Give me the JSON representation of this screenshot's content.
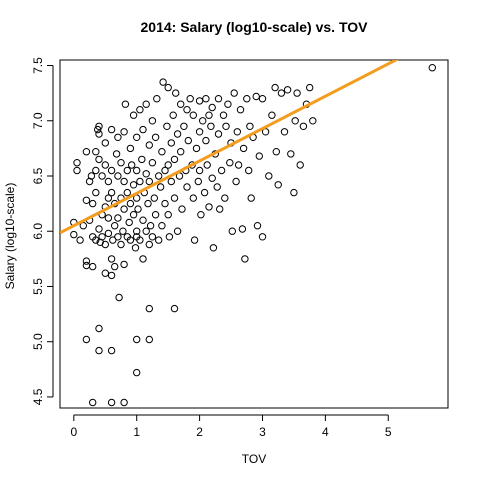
{
  "chart_data": {
    "type": "scatter",
    "title": "2014: Salary (log10-scale) vs. TOV",
    "xlabel": "TOV",
    "ylabel": "Salary (log10-scale)",
    "xlim": [
      -0.22,
      5.95
    ],
    "ylim": [
      4.4,
      7.55
    ],
    "xticks": [
      0,
      1,
      2,
      3,
      4,
      5
    ],
    "yticks": [
      4.5,
      5.0,
      5.5,
      6.0,
      6.5,
      7.0,
      7.5
    ],
    "colors": {
      "points": "#000000",
      "fit_line": "#f39c1e"
    },
    "fit_line": {
      "intercept": 6.05,
      "slope": 0.293
    },
    "series": [
      {
        "type": "scatter",
        "points": [
          [
            0.0,
            6.08
          ],
          [
            0.0,
            5.97
          ],
          [
            0.05,
            6.55
          ],
          [
            0.05,
            6.62
          ],
          [
            0.1,
            5.92
          ],
          [
            0.15,
            6.05
          ],
          [
            0.2,
            5.73
          ],
          [
            0.2,
            5.69
          ],
          [
            0.2,
            6.28
          ],
          [
            0.2,
            6.72
          ],
          [
            0.25,
            6.1
          ],
          [
            0.25,
            6.45
          ],
          [
            0.28,
            6.5
          ],
          [
            0.3,
            5.95
          ],
          [
            0.3,
            6.25
          ],
          [
            0.3,
            5.68
          ],
          [
            0.35,
            6.35
          ],
          [
            0.35,
            6.55
          ],
          [
            0.35,
            5.92
          ],
          [
            0.35,
            6.72
          ],
          [
            0.38,
            6.92
          ],
          [
            0.4,
            6.95
          ],
          [
            0.4,
            6.88
          ],
          [
            0.4,
            6.65
          ],
          [
            0.4,
            6.02
          ],
          [
            0.42,
            5.9
          ],
          [
            0.45,
            6.15
          ],
          [
            0.45,
            6.5
          ],
          [
            0.45,
            5.95
          ],
          [
            0.5,
            6.22
          ],
          [
            0.5,
            6.8
          ],
          [
            0.5,
            6.6
          ],
          [
            0.5,
            5.62
          ],
          [
            0.5,
            5.88
          ],
          [
            0.55,
            6.3
          ],
          [
            0.55,
            6.45
          ],
          [
            0.55,
            6.12
          ],
          [
            0.55,
            5.98
          ],
          [
            0.6,
            5.75
          ],
          [
            0.6,
            5.6
          ],
          [
            0.6,
            6.92
          ],
          [
            0.6,
            6.35
          ],
          [
            0.6,
            6.55
          ],
          [
            0.62,
            5.92
          ],
          [
            0.65,
            6.05
          ],
          [
            0.65,
            5.68
          ],
          [
            0.65,
            6.25
          ],
          [
            0.68,
            6.7
          ],
          [
            0.7,
            6.5
          ],
          [
            0.7,
            6.85
          ],
          [
            0.7,
            6.12
          ],
          [
            0.7,
            5.95
          ],
          [
            0.72,
            5.4
          ],
          [
            0.75,
            6.3
          ],
          [
            0.75,
            6.62
          ],
          [
            0.75,
            5.88
          ],
          [
            0.78,
            6.0
          ],
          [
            0.8,
            6.45
          ],
          [
            0.8,
            6.9
          ],
          [
            0.8,
            5.7
          ],
          [
            0.8,
            6.2
          ],
          [
            0.82,
            7.15
          ],
          [
            0.85,
            6.55
          ],
          [
            0.85,
            6.35
          ],
          [
            0.85,
            5.95
          ],
          [
            0.88,
            6.08
          ],
          [
            0.9,
            6.75
          ],
          [
            0.9,
            6.25
          ],
          [
            0.9,
            5.92
          ],
          [
            0.92,
            6.6
          ],
          [
            0.95,
            6.42
          ],
          [
            0.95,
            7.05
          ],
          [
            0.95,
            6.15
          ],
          [
            0.98,
            5.85
          ],
          [
            1.0,
            6.55
          ],
          [
            1.0,
            6.3
          ],
          [
            1.0,
            6.0
          ],
          [
            1.0,
            5.95
          ],
          [
            1.0,
            6.85
          ],
          [
            1.02,
            6.2
          ],
          [
            1.05,
            7.1
          ],
          [
            1.05,
            6.45
          ],
          [
            1.05,
            5.92
          ],
          [
            1.08,
            6.65
          ],
          [
            1.1,
            6.1
          ],
          [
            1.1,
            6.92
          ],
          [
            1.1,
            5.75
          ],
          [
            1.12,
            6.35
          ],
          [
            1.15,
            6.52
          ],
          [
            1.15,
            6.0
          ],
          [
            1.15,
            7.15
          ],
          [
            1.18,
            6.25
          ],
          [
            1.2,
            5.88
          ],
          [
            1.2,
            6.78
          ],
          [
            1.2,
            6.45
          ],
          [
            1.22,
            6.05
          ],
          [
            1.25,
            6.62
          ],
          [
            1.25,
            7.0
          ],
          [
            1.25,
            5.95
          ],
          [
            1.28,
            6.3
          ],
          [
            1.3,
            6.15
          ],
          [
            1.3,
            6.85
          ],
          [
            1.32,
            7.2
          ],
          [
            1.35,
            6.5
          ],
          [
            1.35,
            5.92
          ],
          [
            1.38,
            6.4
          ],
          [
            1.4,
            6.72
          ],
          [
            1.4,
            6.05
          ],
          [
            1.42,
            7.35
          ],
          [
            1.45,
            6.55
          ],
          [
            1.45,
            6.25
          ],
          [
            1.48,
            6.95
          ],
          [
            1.5,
            6.6
          ],
          [
            1.5,
            6.15
          ],
          [
            1.5,
            7.3
          ],
          [
            1.52,
            5.95
          ],
          [
            1.55,
            6.8
          ],
          [
            1.55,
            6.45
          ],
          [
            1.58,
            7.05
          ],
          [
            1.6,
            6.3
          ],
          [
            1.6,
            6.65
          ],
          [
            1.62,
            7.25
          ],
          [
            1.65,
            6.0
          ],
          [
            1.65,
            6.88
          ],
          [
            1.68,
            6.5
          ],
          [
            1.7,
            7.15
          ],
          [
            1.7,
            6.72
          ],
          [
            1.72,
            6.2
          ],
          [
            1.75,
            6.95
          ],
          [
            1.78,
            6.55
          ],
          [
            1.8,
            7.1
          ],
          [
            1.8,
            6.4
          ],
          [
            1.82,
            6.82
          ],
          [
            1.85,
            7.2
          ],
          [
            1.88,
            6.6
          ],
          [
            1.9,
            6.3
          ],
          [
            1.9,
            7.05
          ],
          [
            1.92,
            5.92
          ],
          [
            1.95,
            6.75
          ],
          [
            1.98,
            6.45
          ],
          [
            2.0,
            7.18
          ],
          [
            2.0,
            6.9
          ],
          [
            2.0,
            6.55
          ],
          [
            2.02,
            6.15
          ],
          [
            2.05,
            7.0
          ],
          [
            2.08,
            6.35
          ],
          [
            2.1,
            6.82
          ],
          [
            2.1,
            7.2
          ],
          [
            2.12,
            6.6
          ],
          [
            2.15,
            7.05
          ],
          [
            2.15,
            6.22
          ],
          [
            2.18,
            6.95
          ],
          [
            2.2,
            6.48
          ],
          [
            2.2,
            7.12
          ],
          [
            2.22,
            5.85
          ],
          [
            2.25,
            6.7
          ],
          [
            2.28,
            6.4
          ],
          [
            2.3,
            7.2
          ],
          [
            2.3,
            6.88
          ],
          [
            2.32,
            6.2
          ],
          [
            2.35,
            6.55
          ],
          [
            2.38,
            7.05
          ],
          [
            2.4,
            6.3
          ],
          [
            2.42,
            6.95
          ],
          [
            2.45,
            7.15
          ],
          [
            2.48,
            6.62
          ],
          [
            2.5,
            6.8
          ],
          [
            2.52,
            6.0
          ],
          [
            2.55,
            7.25
          ],
          [
            2.58,
            6.45
          ],
          [
            2.6,
            6.9
          ],
          [
            2.62,
            6.6
          ],
          [
            2.65,
            7.1
          ],
          [
            2.68,
            6.02
          ],
          [
            2.7,
            6.75
          ],
          [
            2.72,
            5.75
          ],
          [
            2.75,
            7.2
          ],
          [
            2.78,
            6.55
          ],
          [
            2.8,
            6.95
          ],
          [
            2.82,
            6.3
          ],
          [
            2.85,
            6.85
          ],
          [
            2.9,
            7.22
          ],
          [
            2.92,
            6.05
          ],
          [
            2.95,
            6.68
          ],
          [
            3.0,
            7.2
          ],
          [
            3.0,
            5.95
          ],
          [
            3.05,
            6.9
          ],
          [
            3.1,
            6.5
          ],
          [
            3.15,
            7.05
          ],
          [
            3.2,
            7.3
          ],
          [
            3.22,
            6.72
          ],
          [
            3.25,
            6.42
          ],
          [
            3.3,
            7.25
          ],
          [
            3.35,
            6.9
          ],
          [
            3.4,
            7.28
          ],
          [
            3.45,
            6.7
          ],
          [
            3.5,
            6.35
          ],
          [
            3.52,
            7.0
          ],
          [
            3.55,
            7.25
          ],
          [
            3.6,
            6.6
          ],
          [
            3.65,
            6.95
          ],
          [
            3.7,
            7.15
          ],
          [
            3.75,
            7.3
          ],
          [
            3.8,
            7.0
          ],
          [
            5.7,
            7.48
          ],
          [
            0.3,
            4.45
          ],
          [
            0.6,
            4.45
          ],
          [
            0.8,
            4.45
          ],
          [
            1.0,
            4.72
          ],
          [
            0.4,
            4.92
          ],
          [
            0.6,
            4.92
          ],
          [
            0.2,
            5.02
          ],
          [
            1.0,
            5.02
          ],
          [
            1.2,
            5.02
          ],
          [
            0.4,
            5.12
          ],
          [
            1.2,
            5.3
          ],
          [
            1.6,
            5.3
          ]
        ]
      }
    ]
  }
}
